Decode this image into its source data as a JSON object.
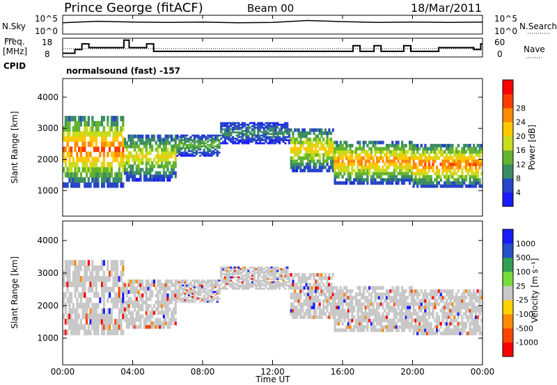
{
  "header": {
    "station": "Prince George (fitACF)",
    "beam": "Beam 00",
    "date": "18/Mar/2011"
  },
  "noise_panel": {
    "left_label": "N.Sky",
    "left_ticks": [
      "10^5",
      "10^0"
    ],
    "right_label": "N.Search",
    "right_ticks": [
      "10^5",
      "10^0"
    ]
  },
  "freq_panel": {
    "left_label_1": "Freq.",
    "left_label_2": "[MHz]",
    "left_ticks": [
      "18",
      "8"
    ],
    "right_label": "Nave",
    "right_ticks": [
      "60",
      "0"
    ]
  },
  "cpid": {
    "label": "CPID",
    "text": "normalsound (fast) -157"
  },
  "power_panel": {
    "ylabel": "Slant Range [km]",
    "yticks": [
      "1000",
      "2000",
      "3000",
      "4000"
    ],
    "colorbar_label": "Power [dB]",
    "colorbar_ticks": [
      "4",
      "8",
      "12",
      "16",
      "20",
      "24",
      "28"
    ],
    "colors": [
      "#1a1aff",
      "#2846c8",
      "#3c8c64",
      "#64b432",
      "#c8dc1e",
      "#ffc800",
      "#ff8c00",
      "#ff3c00",
      "#ff0000"
    ]
  },
  "velocity_panel": {
    "ylabel": "Slant Range [km]",
    "yticks": [
      "1000",
      "2000",
      "3000",
      "4000"
    ],
    "colorbar_label": "Velocity [m s⁻¹]",
    "colorbar_ticks": [
      "1000",
      "500",
      "100",
      "25",
      "-25",
      "-100",
      "-500",
      "-1000"
    ],
    "colors": [
      "#1a1aff",
      "#2850c8",
      "#32a050",
      "#78dc3c",
      "#c8c8c8",
      "#ffd200",
      "#ff8c00",
      "#ff4600",
      "#ff0000"
    ]
  },
  "xaxis": {
    "xlabel": "Time UT",
    "ticks": [
      "00:00",
      "04:00",
      "08:00",
      "12:00",
      "16:00",
      "20:00",
      "00:00"
    ]
  },
  "chart_data": [
    {
      "type": "line",
      "title": "N.Sky / N.Search",
      "x": [
        0,
        2,
        4,
        6,
        8,
        10,
        12,
        14,
        16,
        18,
        20,
        22,
        24
      ],
      "series": [
        {
          "name": "N.Sky",
          "values": [
            3,
            3.4,
            3.2,
            3.1,
            3.2,
            3.0,
            3.1,
            3.6,
            3.3,
            3.1,
            3.2,
            3.1,
            3.2
          ]
        }
      ],
      "ylim": [
        0,
        5
      ]
    },
    {
      "type": "line",
      "title": "Freq. / Nave",
      "x": [
        0,
        0.7,
        1.1,
        1.5,
        3.5,
        3.8,
        4.8,
        5.2,
        8.0,
        10.0,
        14.0,
        16.0,
        16.6,
        17.0,
        17.8,
        18.2,
        19.5,
        19.9,
        21.5,
        23.5,
        23.9,
        24
      ],
      "series": [
        {
          "name": "Freq.",
          "values": [
            10,
            12,
            15,
            13,
            17,
            13,
            15,
            11,
            11,
            11,
            11,
            11,
            14,
            11,
            14,
            11,
            14,
            11,
            13,
            12,
            15,
            15
          ]
        }
      ],
      "ylim": [
        8,
        18
      ]
    },
    {
      "type": "heatmap",
      "title": "Power",
      "xlabel": "Time UT",
      "ylabel": "Slant Range [km]",
      "xlim": [
        0,
        24
      ],
      "ylim": [
        180,
        4600
      ],
      "zlabel": "Power [dB]",
      "zlim": [
        0,
        32
      ],
      "bands": [
        {
          "t0": 0.0,
          "t1": 3.5,
          "r_lo": 1100,
          "r_hi": 3400,
          "peak": 26
        },
        {
          "t0": 3.5,
          "t1": 6.5,
          "r_lo": 1300,
          "r_hi": 2800,
          "peak": 18
        },
        {
          "t0": 6.5,
          "t1": 9.0,
          "r_lo": 2100,
          "r_hi": 2800,
          "peak": 12
        },
        {
          "t0": 9.0,
          "t1": 13.0,
          "r_lo": 2500,
          "r_hi": 3200,
          "peak": 8
        },
        {
          "t0": 13.0,
          "t1": 15.5,
          "r_lo": 1600,
          "r_hi": 3000,
          "peak": 20
        },
        {
          "t0": 15.5,
          "t1": 20.0,
          "r_lo": 1200,
          "r_hi": 2600,
          "peak": 24
        },
        {
          "t0": 20.0,
          "t1": 24.0,
          "r_lo": 1100,
          "r_hi": 2500,
          "peak": 26
        }
      ]
    },
    {
      "type": "heatmap",
      "title": "Velocity",
      "xlabel": "Time UT",
      "ylabel": "Slant Range [km]",
      "xlim": [
        0,
        24
      ],
      "ylim": [
        180,
        4600
      ],
      "zlabel": "Velocity [m s⁻¹]",
      "zlim": [
        -1000,
        1000
      ],
      "bands": [
        {
          "t0": 0.0,
          "t1": 3.5,
          "r_lo": 1100,
          "r_hi": 3400,
          "v": 0
        },
        {
          "t0": 3.5,
          "t1": 6.5,
          "r_lo": 1300,
          "r_hi": 2800,
          "v": 0
        },
        {
          "t0": 6.5,
          "t1": 9.0,
          "r_lo": 2100,
          "r_hi": 2800,
          "v": 0
        },
        {
          "t0": 9.0,
          "t1": 13.0,
          "r_lo": 2500,
          "r_hi": 3200,
          "v": 0
        },
        {
          "t0": 13.0,
          "t1": 15.5,
          "r_lo": 1600,
          "r_hi": 3000,
          "v": 0
        },
        {
          "t0": 15.5,
          "t1": 20.0,
          "r_lo": 1200,
          "r_hi": 2600,
          "v": 0
        },
        {
          "t0": 20.0,
          "t1": 24.0,
          "r_lo": 1100,
          "r_hi": 2500,
          "v": 0
        }
      ]
    }
  ]
}
